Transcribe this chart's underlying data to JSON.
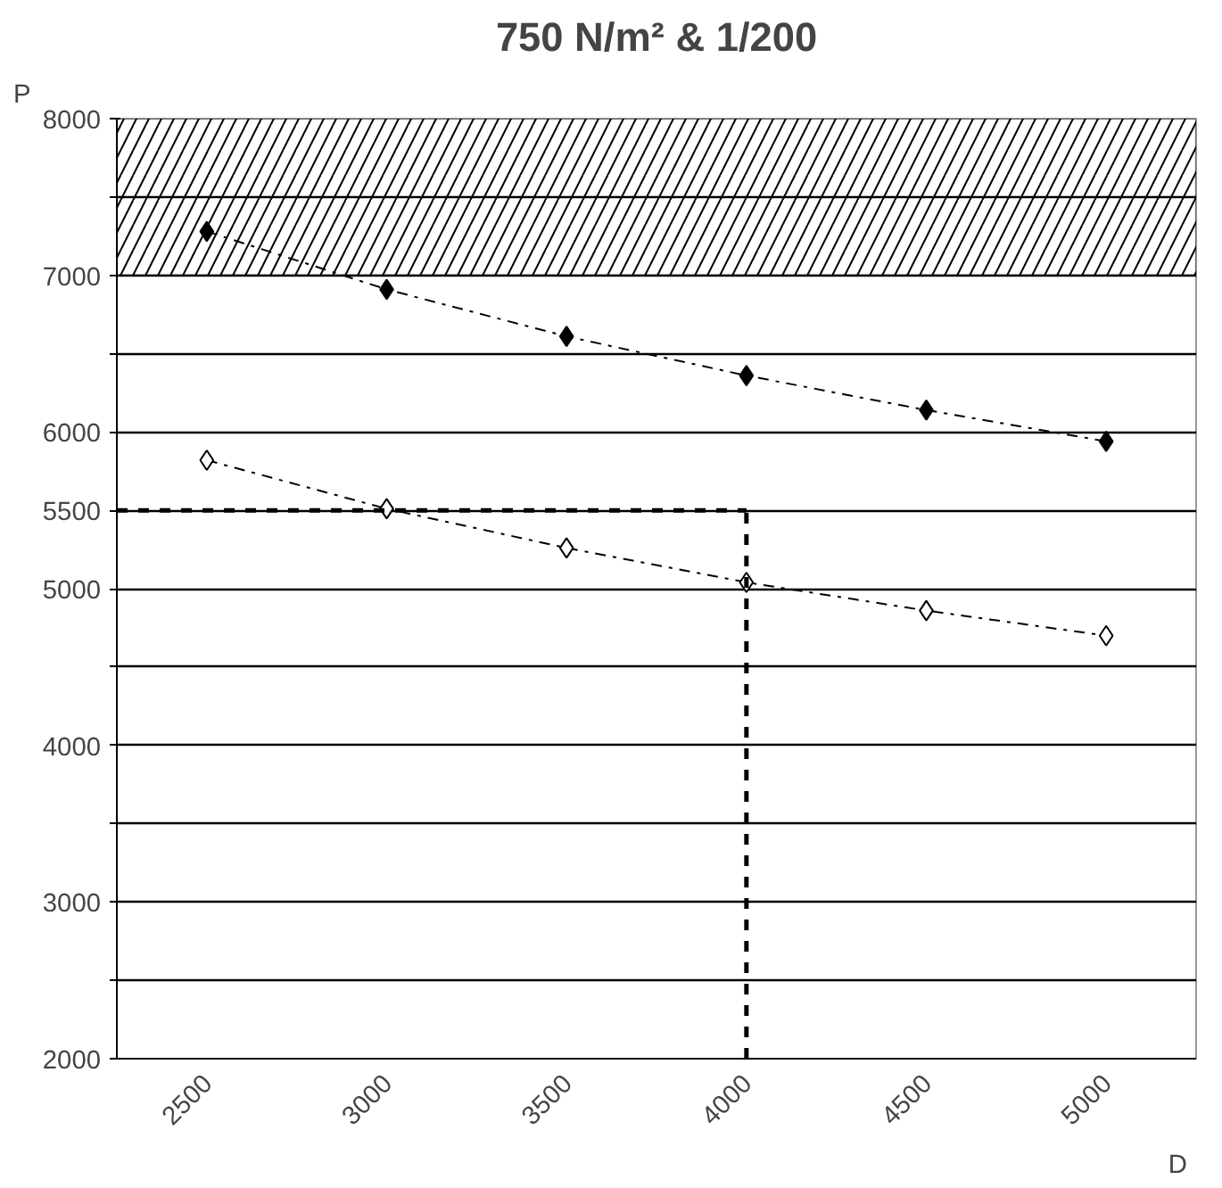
{
  "chart_data": {
    "type": "line",
    "title": "750 N/m² & 1/200",
    "xlabel": "D",
    "ylabel": "P",
    "categories": [
      "2500",
      "3000",
      "3500",
      "4000",
      "4500",
      "5000"
    ],
    "series": [
      {
        "color": "#000000",
        "values": [
          7280,
          6910,
          6610,
          6360,
          6140,
          5940
        ]
      },
      {
        "color": "#ffffff",
        "values": [
          5820,
          5510,
          5260,
          5040,
          4860,
          4700
        ]
      }
    ],
    "marker": "diamond",
    "line_style": "dashdot",
    "ylim": [
      2000,
      8000
    ],
    "yticks": [
      2000,
      {
        "value": 2500,
        "label": null
      },
      3000,
      {
        "value": 3500,
        "label": null
      },
      4000,
      {
        "value": 4500,
        "label": null
      },
      5000,
      5500,
      6000,
      {
        "value": 6500,
        "label": null
      },
      7000,
      {
        "value": 7500,
        "label": null
      },
      8000
    ],
    "grid": "y",
    "bands": [
      {
        "axis": "y",
        "from": 7000,
        "to": 8000,
        "label": null
      }
    ],
    "ref_lines": [
      {
        "axis": "y",
        "value": 5500,
        "label": null,
        "line_style": "dashed"
      },
      {
        "axis": "x",
        "value": "4000",
        "label": null,
        "line_style": "dashed"
      }
    ]
  }
}
